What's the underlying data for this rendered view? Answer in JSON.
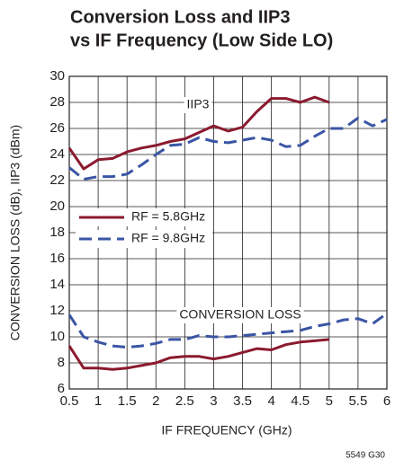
{
  "chart_data": {
    "type": "line",
    "title": [
      "Conversion Loss and IIP3",
      "vs IF Frequency (Low Side LO)"
    ],
    "xlabel": "IF FREQUENCY (GHz)",
    "ylabel": "CONVERSION LOSS (dB), IIP3 (dBm)",
    "annotations": [
      "IIP3",
      "CONVERSION LOSS"
    ],
    "footnote": "5549 G30",
    "x": [
      0.5,
      0.75,
      1,
      1.25,
      1.5,
      1.75,
      2,
      2.25,
      2.5,
      2.75,
      3,
      3.25,
      3.5,
      3.75,
      4,
      4.25,
      4.5,
      4.75,
      5,
      5.25,
      5.5,
      5.75,
      6
    ],
    "series": [
      {
        "name": "RF = 5.8GHz",
        "color": "#8b1a2e",
        "dashed": false,
        "values": [
          24.5,
          22.9,
          23.6,
          23.7,
          24.2,
          24.5,
          24.7,
          25.0,
          25.2,
          25.7,
          26.2,
          25.8,
          26.1,
          27.3,
          28.3,
          28.3,
          28.0,
          28.4,
          28.0,
          null,
          null,
          null,
          null
        ]
      },
      {
        "name": "RF = 9.8GHz",
        "color": "#3a55a4",
        "dashed": true,
        "values": [
          23.0,
          22.1,
          22.3,
          22.3,
          22.5,
          23.2,
          24.0,
          24.7,
          24.8,
          25.3,
          25.0,
          24.9,
          25.1,
          25.3,
          25.1,
          24.6,
          24.7,
          25.4,
          26.0,
          26.0,
          26.8,
          26.2,
          26.7
        ]
      },
      {
        "color": "#8b1a2e",
        "dashed": false,
        "values": [
          9.3,
          7.6,
          7.6,
          7.5,
          7.6,
          7.8,
          8.0,
          8.4,
          8.5,
          8.5,
          8.3,
          8.5,
          8.8,
          9.1,
          9.0,
          9.4,
          9.6,
          9.7,
          9.8,
          null,
          null,
          null,
          null
        ]
      },
      {
        "color": "#3a55a4",
        "dashed": true,
        "values": [
          11.7,
          10.0,
          9.6,
          9.3,
          9.2,
          9.3,
          9.5,
          9.8,
          9.8,
          10.1,
          10.0,
          10.0,
          10.1,
          10.2,
          10.3,
          10.4,
          10.5,
          10.8,
          11.0,
          11.3,
          11.4,
          11.0,
          11.8
        ]
      }
    ],
    "xlim": [
      0.5,
      6
    ],
    "xticks": [
      0.5,
      1,
      1.5,
      2,
      2.5,
      3,
      3.5,
      4,
      4.5,
      5,
      5.5,
      6
    ],
    "ylim": [
      6,
      30
    ],
    "yticks": [
      6,
      8,
      10,
      12,
      14,
      16,
      18,
      20,
      22,
      24,
      26,
      28,
      30
    ],
    "grid": true
  }
}
